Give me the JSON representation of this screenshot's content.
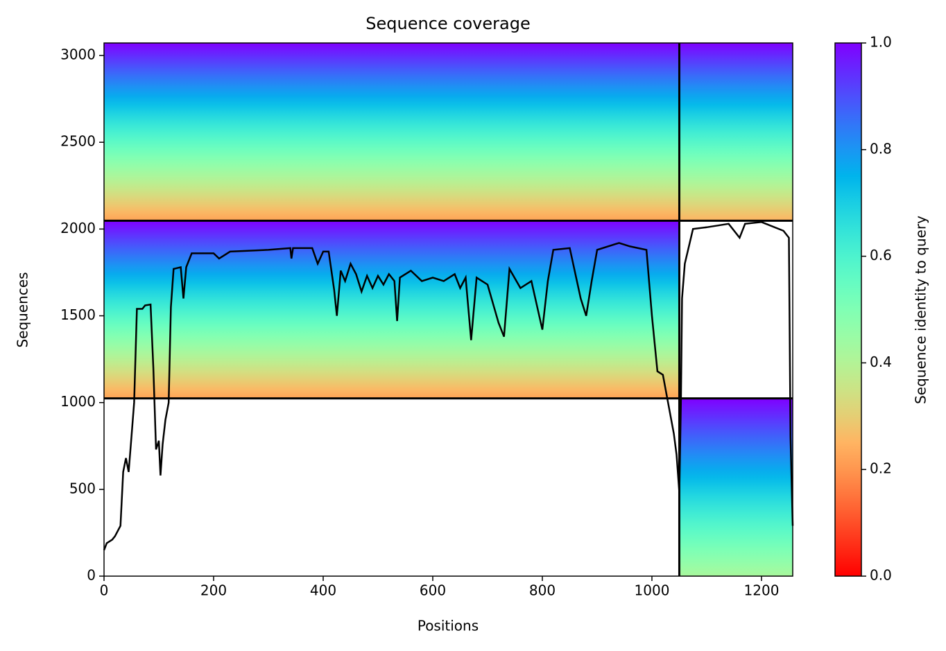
{
  "chart_data": {
    "type": "coverage",
    "title": "Sequence coverage",
    "x_label": "Positions",
    "y_label": "Sequences",
    "xlim": [
      0,
      1257
    ],
    "ylim": [
      0,
      3072
    ],
    "xticks": [
      0,
      200,
      400,
      600,
      800,
      1000,
      1200
    ],
    "yticks": [
      0,
      500,
      1000,
      1500,
      2000,
      2500,
      3000
    ],
    "colormap": "rainbow_r",
    "blocks": [
      {
        "positions": [
          0,
          1050
        ],
        "sequences": [
          2048,
          3072
        ],
        "identity": [
          0.22,
          1.0
        ]
      },
      {
        "positions": [
          1050,
          1257
        ],
        "sequences": [
          2048,
          3072
        ],
        "identity": [
          0.25,
          1.0
        ]
      },
      {
        "positions": [
          0,
          1050
        ],
        "sequences": [
          1024,
          2048
        ],
        "identity": [
          0.22,
          1.0
        ]
      },
      {
        "positions": [
          1050,
          1257
        ],
        "sequences": [
          0,
          1024
        ],
        "identity": [
          0.42,
          1.0
        ]
      }
    ],
    "boundaries": {
      "x": [
        1050
      ],
      "y": [
        1024,
        2048
      ]
    },
    "coverage": {
      "color": "#000000",
      "positions": [
        0,
        5,
        15,
        20,
        30,
        35,
        40,
        45,
        50,
        55,
        60,
        70,
        75,
        85,
        90,
        95,
        100,
        103,
        107,
        112,
        118,
        122,
        127,
        140,
        145,
        150,
        160,
        200,
        210,
        230,
        300,
        340,
        342,
        345,
        380,
        390,
        400,
        410,
        420,
        425,
        432,
        440,
        450,
        460,
        470,
        480,
        490,
        500,
        510,
        520,
        530,
        535,
        540,
        560,
        580,
        600,
        620,
        640,
        650,
        660,
        670,
        680,
        700,
        720,
        730,
        740,
        760,
        780,
        800,
        810,
        820,
        850,
        870,
        880,
        890,
        900,
        940,
        960,
        990,
        1000,
        1010,
        1020,
        1040,
        1045,
        1050,
        1053,
        1055,
        1060,
        1075,
        1100,
        1140,
        1160,
        1170,
        1200,
        1240,
        1250,
        1253,
        1257
      ],
      "counts": [
        150,
        190,
        210,
        230,
        290,
        600,
        680,
        600,
        800,
        1000,
        1540,
        1540,
        1560,
        1565,
        1200,
        730,
        780,
        580,
        760,
        900,
        1000,
        1550,
        1770,
        1780,
        1600,
        1780,
        1860,
        1860,
        1830,
        1870,
        1880,
        1890,
        1830,
        1890,
        1890,
        1800,
        1870,
        1870,
        1650,
        1500,
        1760,
        1700,
        1800,
        1740,
        1640,
        1730,
        1660,
        1730,
        1680,
        1740,
        1700,
        1470,
        1720,
        1760,
        1700,
        1720,
        1700,
        1740,
        1660,
        1720,
        1360,
        1720,
        1680,
        1460,
        1380,
        1770,
        1660,
        1700,
        1420,
        1700,
        1880,
        1890,
        1600,
        1500,
        1700,
        1880,
        1920,
        1900,
        1880,
        1500,
        1180,
        1160,
        820,
        700,
        480,
        1000,
        1600,
        1800,
        2000,
        2010,
        2030,
        1950,
        2030,
        2040,
        1990,
        1950,
        800,
        290
      ]
    },
    "colorbar": {
      "label": "Sequence identity to query",
      "lim": [
        0,
        1
      ],
      "ticks": [
        {
          "value": 0,
          "label": "0.0"
        },
        0.2,
        0.4,
        0.6,
        0.8,
        {
          "value": 1,
          "label": "1.0"
        }
      ]
    }
  }
}
